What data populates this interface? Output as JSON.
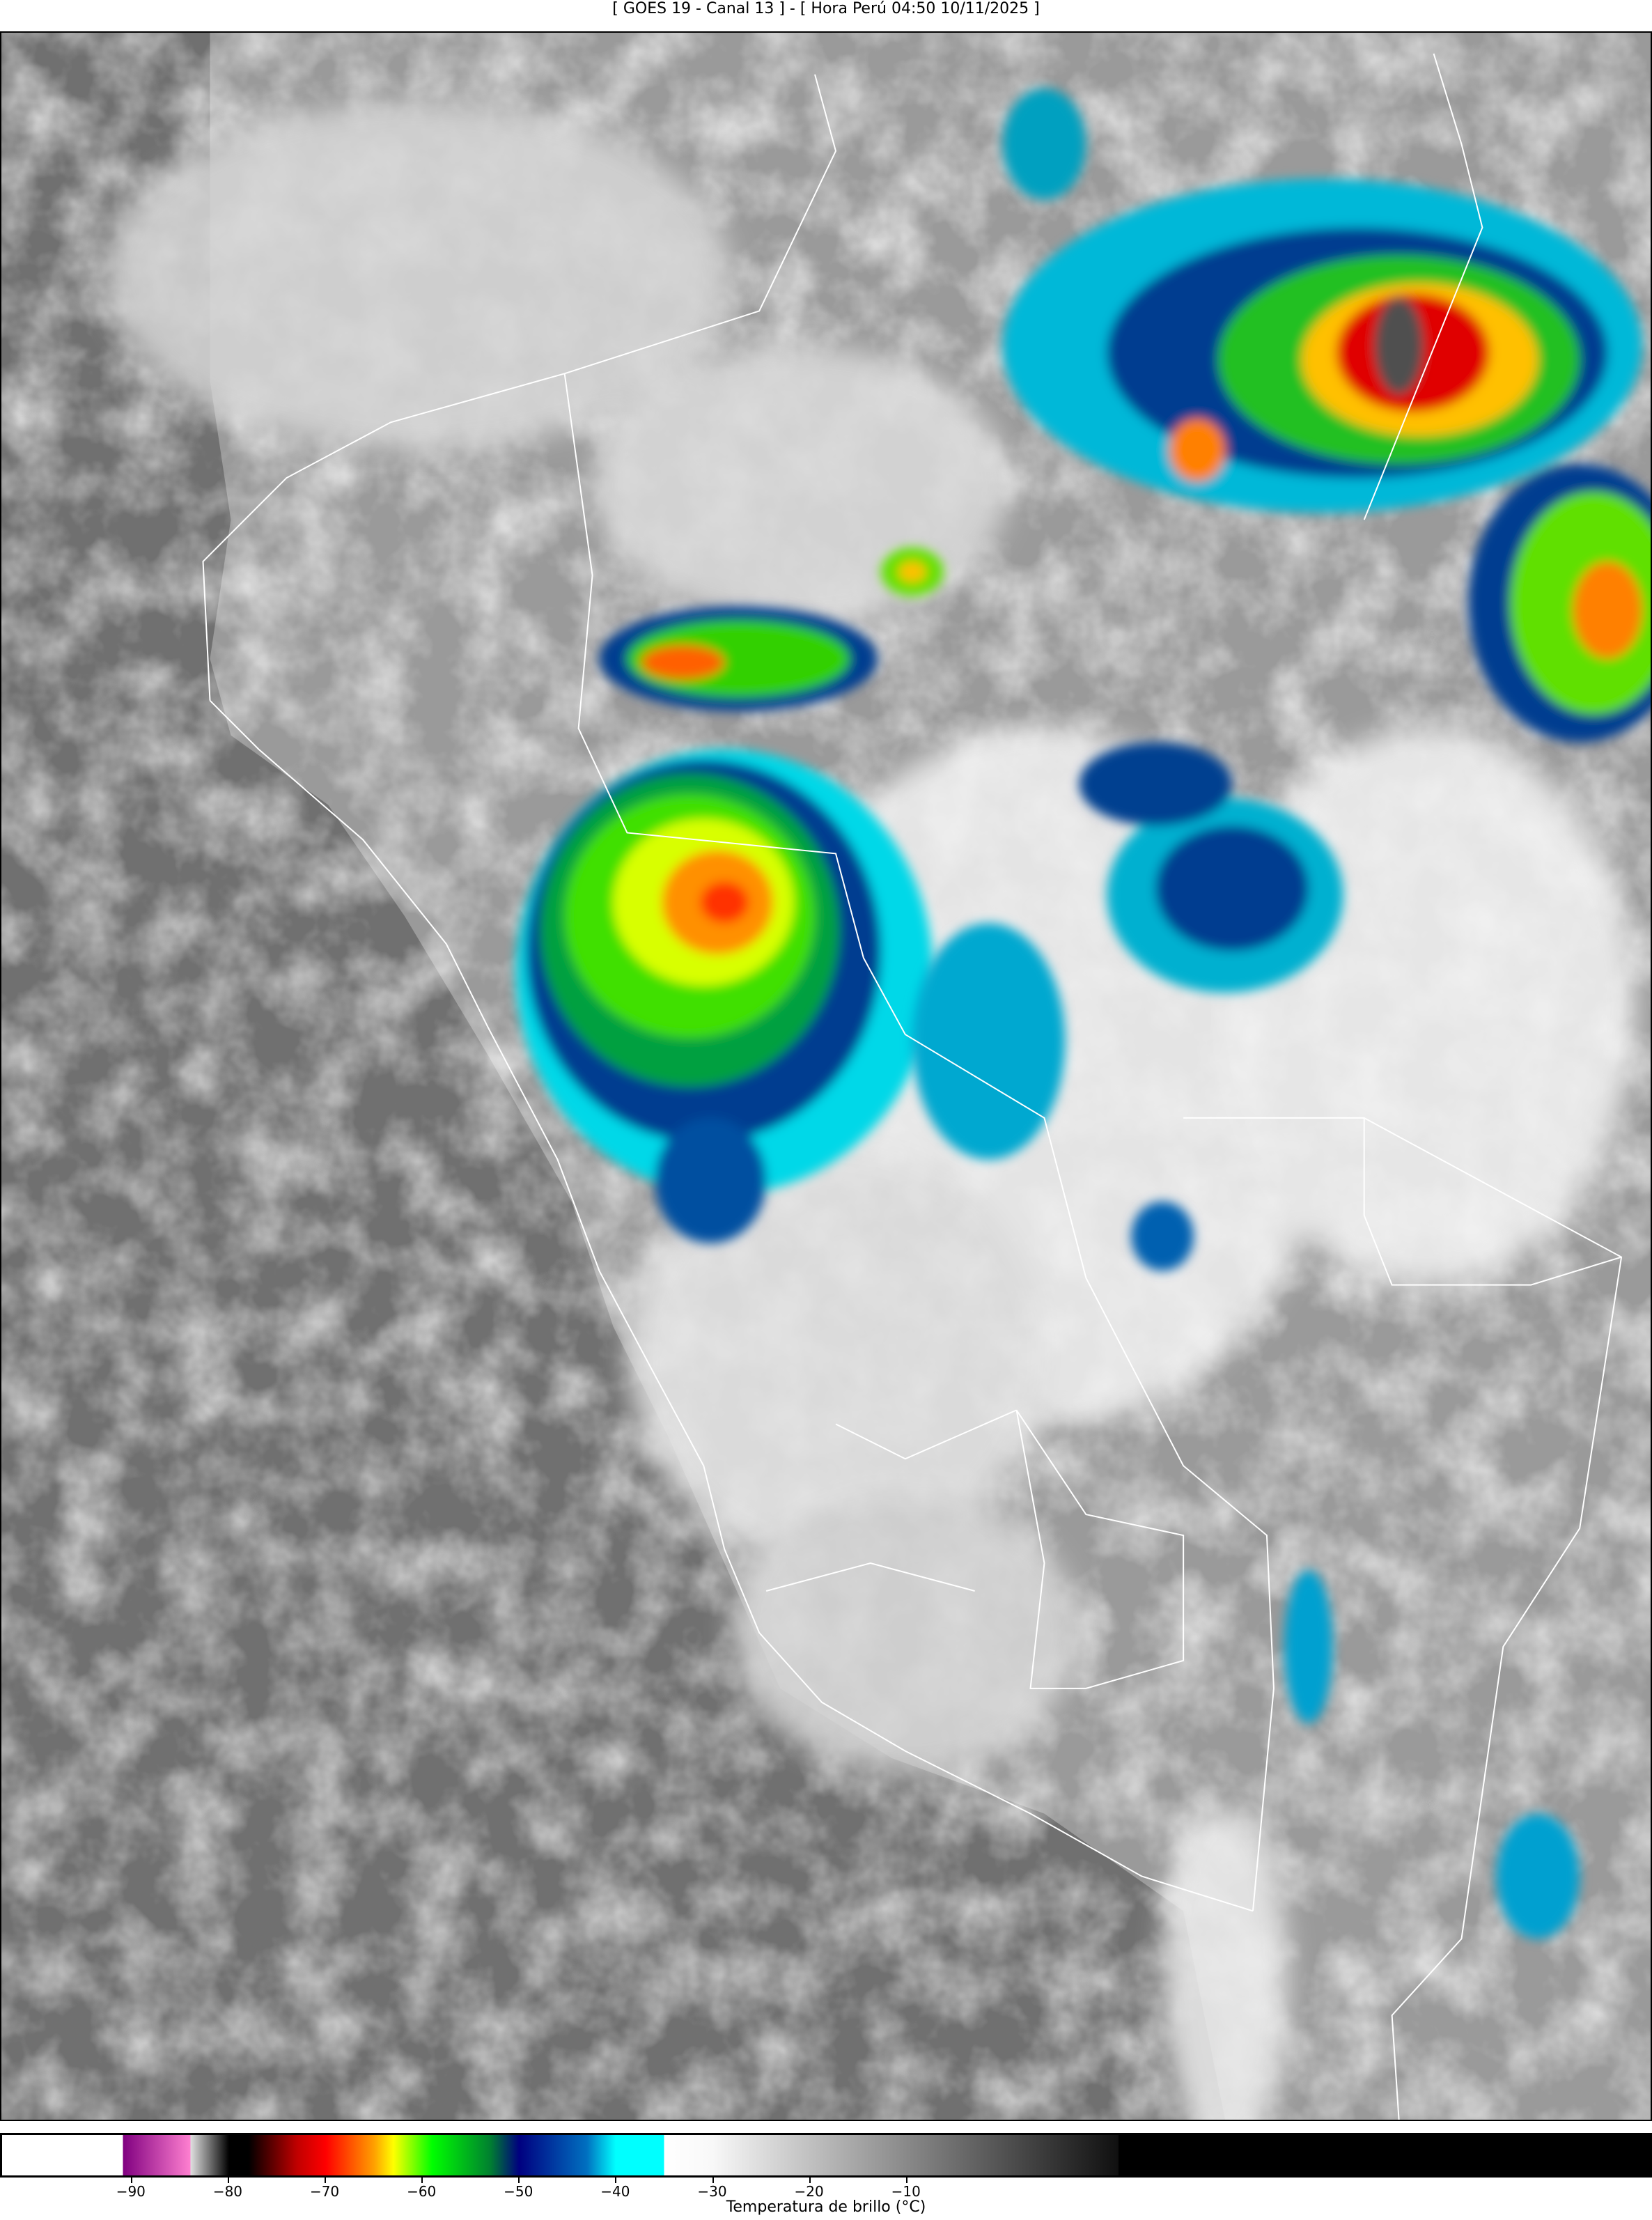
{
  "title": "[ GOES 19 - Canal 13 ] - [ Hora Perú 04:50 10/11/2025 ]",
  "map": {
    "ocean_color": "#6e6e6e",
    "land_color": "#9a9a9a",
    "cloud_color": "#e8e8e8",
    "border_color": "#ffffff"
  },
  "colorbar": {
    "label": "Temperatura de brillo (°C)",
    "range": [
      -103.5,
      67
    ],
    "stops": [
      {
        "t": -103.5,
        "c": "#ffffff"
      },
      {
        "t": -91,
        "c": "#ffffff"
      },
      {
        "t": -91,
        "c": "#800080"
      },
      {
        "t": -84,
        "c": "#ff80d0"
      },
      {
        "t": -84,
        "c": "#e0e0e0"
      },
      {
        "t": -80,
        "c": "#000000"
      },
      {
        "t": -78,
        "c": "#000000"
      },
      {
        "t": -73,
        "c": "#c00000"
      },
      {
        "t": -70,
        "c": "#ff0000"
      },
      {
        "t": -65,
        "c": "#ffa000"
      },
      {
        "t": -63,
        "c": "#ffff00"
      },
      {
        "t": -59,
        "c": "#00ff00"
      },
      {
        "t": -53,
        "c": "#008030"
      },
      {
        "t": -50,
        "c": "#000080"
      },
      {
        "t": -43,
        "c": "#0070c0"
      },
      {
        "t": -40,
        "c": "#00ffff"
      },
      {
        "t": -35,
        "c": "#00ffff"
      },
      {
        "t": -35,
        "c": "#ffffff"
      },
      {
        "t": -30,
        "c": "#f8f8f8"
      },
      {
        "t": 12,
        "c": "#101010"
      },
      {
        "t": 12,
        "c": "#000000"
      },
      {
        "t": 67,
        "c": "#000000"
      }
    ],
    "ticks": [
      {
        "value": -90,
        "label": "−90"
      },
      {
        "value": -80,
        "label": "−80"
      },
      {
        "value": -70,
        "label": "−70"
      },
      {
        "value": -60,
        "label": "−60"
      },
      {
        "value": -50,
        "label": "−50"
      },
      {
        "value": -40,
        "label": "−40"
      },
      {
        "value": -30,
        "label": "−30"
      },
      {
        "value": -20,
        "label": "−20"
      },
      {
        "value": -10,
        "label": "−10"
      }
    ]
  }
}
